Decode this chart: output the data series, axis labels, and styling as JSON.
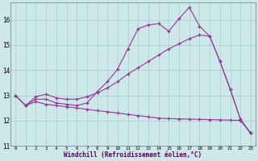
{
  "xlabel": "Windchill (Refroidissement éolien,°C)",
  "bg_color": "#cce8e8",
  "line_color": "#993399",
  "grid_color": "#aacccc",
  "xlim": [
    -0.5,
    23.5
  ],
  "ylim": [
    11,
    16.7
  ],
  "xtick_labels": [
    "0",
    "1",
    "2",
    "3",
    "4",
    "5",
    "6",
    "7",
    "8",
    "9",
    "10",
    "11",
    "12",
    "13",
    "14",
    "15",
    "16",
    "17",
    "18",
    "19",
    "20",
    "21",
    "22",
    "23"
  ],
  "xtick_vals": [
    0,
    1,
    2,
    3,
    4,
    5,
    6,
    7,
    8,
    9,
    10,
    11,
    12,
    13,
    14,
    15,
    16,
    17,
    18,
    19,
    20,
    21,
    22,
    23
  ],
  "yticks": [
    11,
    12,
    13,
    14,
    15,
    16
  ],
  "line1_x": [
    0,
    1,
    2,
    3,
    4,
    5,
    6,
    7,
    8,
    9,
    10,
    11,
    12,
    13,
    14,
    15,
    16,
    17,
    18,
    19,
    20,
    21,
    22,
    23
  ],
  "line1_y": [
    13.0,
    12.6,
    12.85,
    12.85,
    12.7,
    12.65,
    12.6,
    12.7,
    13.15,
    13.55,
    14.05,
    14.85,
    15.65,
    15.8,
    15.85,
    15.55,
    16.05,
    16.5,
    15.75,
    15.35,
    14.35,
    13.25,
    12.05,
    11.5
  ],
  "line2_x": [
    0,
    1,
    2,
    3,
    4,
    5,
    6,
    7,
    8,
    9,
    10,
    11,
    12,
    13,
    14,
    15,
    16,
    17,
    18,
    19,
    20,
    21,
    22,
    23
  ],
  "line2_y": [
    13.0,
    12.6,
    12.95,
    13.05,
    12.9,
    12.85,
    12.85,
    12.95,
    13.1,
    13.3,
    13.55,
    13.85,
    14.1,
    14.35,
    14.6,
    14.85,
    15.05,
    15.25,
    15.4,
    15.35,
    14.35,
    13.25,
    12.05,
    11.5
  ],
  "line3_x": [
    0,
    1,
    2,
    3,
    4,
    5,
    6,
    7,
    8,
    9,
    10,
    11,
    12,
    13,
    14,
    15,
    16,
    17,
    18,
    19,
    20,
    21,
    22,
    23
  ],
  "line3_y": [
    13.0,
    12.6,
    12.75,
    12.65,
    12.6,
    12.55,
    12.5,
    12.45,
    12.4,
    12.35,
    12.3,
    12.25,
    12.2,
    12.15,
    12.1,
    12.08,
    12.07,
    12.06,
    12.05,
    12.04,
    12.03,
    12.02,
    12.01,
    11.5
  ]
}
